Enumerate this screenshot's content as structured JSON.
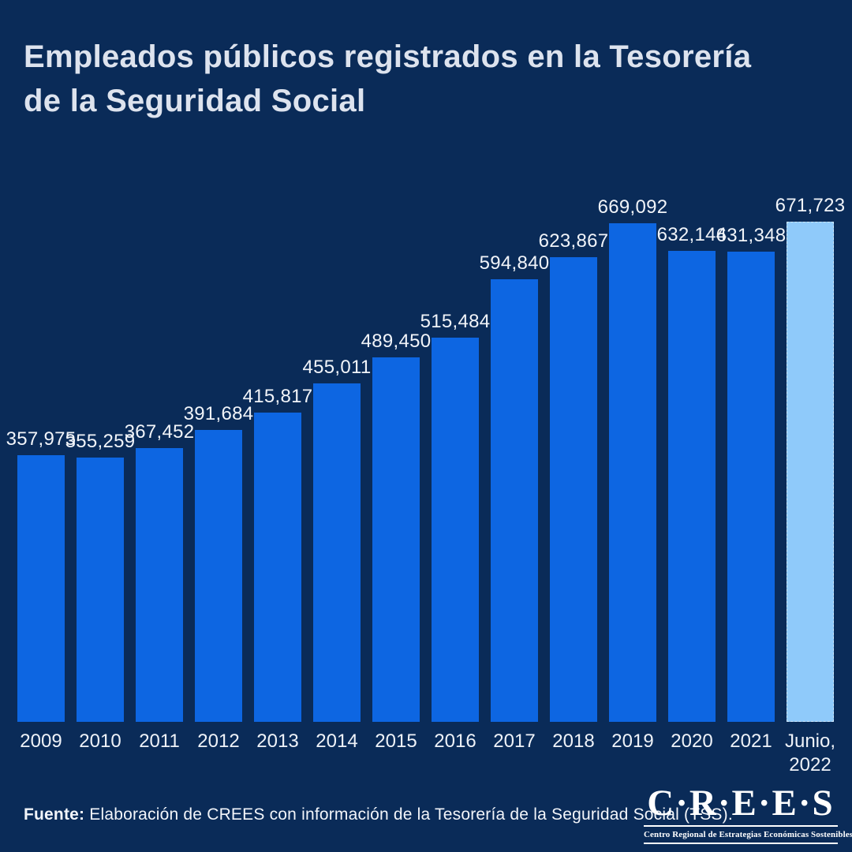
{
  "title": {
    "line1": "Empleados públicos registrados en la Tesorería",
    "line2": "de la Seguridad Social"
  },
  "chart_data": {
    "type": "bar",
    "title": "Empleados públicos registrados en la Tesorería de la Seguridad Social",
    "xlabel": "",
    "ylabel": "",
    "categories": [
      "2009",
      "2010",
      "2011",
      "2012",
      "2013",
      "2014",
      "2015",
      "2016",
      "2017",
      "2018",
      "2019",
      "2020",
      "2021",
      "Junio, 2022"
    ],
    "values": [
      357975,
      355259,
      367452,
      391684,
      415817,
      455011,
      489450,
      515484,
      594840,
      623867,
      669092,
      632144,
      631348,
      671723
    ],
    "value_labels": [
      "357,975",
      "355,259",
      "367,452",
      "391,684",
      "415,817",
      "455,011",
      "489,450",
      "515,484",
      "594,840",
      "623,867",
      "669,092",
      "632,144",
      "631,348",
      "671,723"
    ],
    "highlight_index": 13,
    "ylim": [
      0,
      671723
    ],
    "grid": false,
    "legend": false,
    "colors": {
      "background": "#0a2b58",
      "bar": "#0d66e2",
      "highlight_bar": "#8fcafa",
      "title_text": "#dde3ee",
      "label_text": "#f1f4f9"
    }
  },
  "footer": {
    "label": "Fuente:",
    "text": " Elaboración de CREES con información de la Tesorería de la Seguridad Social  (TSS)."
  },
  "logo": {
    "wordmark": "C·R·E·E·S",
    "tagline": "Centro Regional de Estrategias Económicas Sostenibles"
  }
}
